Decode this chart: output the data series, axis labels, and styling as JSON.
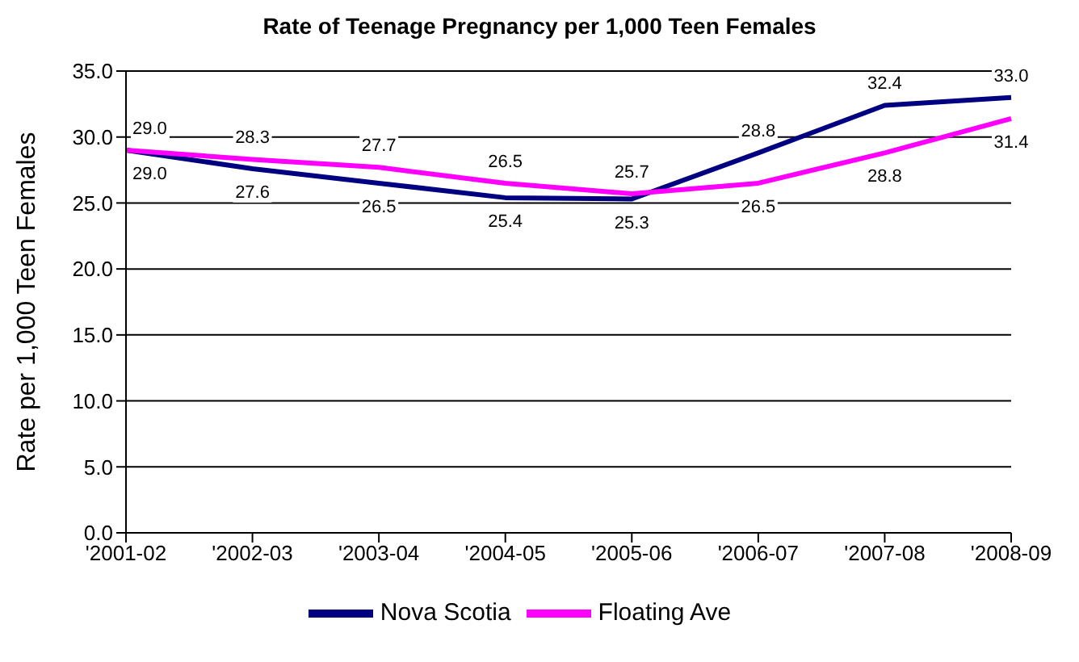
{
  "chart_data": {
    "type": "line",
    "title": "Rate of Teenage Pregnancy per 1,000 Teen Females",
    "ylabel": "Rate per 1,000 Teen Females",
    "categories": [
      "'2001-02",
      "'2002-03",
      "'2003-04",
      "'2004-05",
      "'2005-06",
      "'2006-07",
      "'2007-08",
      "'2008-09"
    ],
    "series": [
      {
        "name": "Nova Scotia",
        "color": "#000080",
        "values": [
          29.0,
          27.6,
          26.5,
          25.4,
          25.3,
          28.8,
          32.4,
          33.0
        ],
        "value_labels": [
          "29.0",
          "27.6",
          "26.5",
          "25.4",
          "25.3",
          "28.8",
          "32.4",
          "33.0"
        ]
      },
      {
        "name": "Floating Ave",
        "color": "#ff00ff",
        "values": [
          29.0,
          28.3,
          27.7,
          26.5,
          25.7,
          26.5,
          28.8,
          31.4
        ],
        "value_labels": [
          "29.0",
          "28.3",
          "27.7",
          "26.5",
          "25.7",
          "26.5",
          "28.8",
          "31.4"
        ]
      }
    ],
    "ylim": [
      0,
      35
    ],
    "yticks": [
      {
        "value": 0,
        "label": "0.0"
      },
      {
        "value": 5,
        "label": "5.0"
      },
      {
        "value": 10,
        "label": "10.0"
      },
      {
        "value": 15,
        "label": "15.0"
      },
      {
        "value": 20,
        "label": "20.0"
      },
      {
        "value": 25,
        "label": "25.0"
      },
      {
        "value": 30,
        "label": "30.0"
      },
      {
        "value": 35,
        "label": "35.0"
      }
    ],
    "grid": "y",
    "legend": "bottom",
    "marker": "none",
    "line_style": "solid"
  }
}
